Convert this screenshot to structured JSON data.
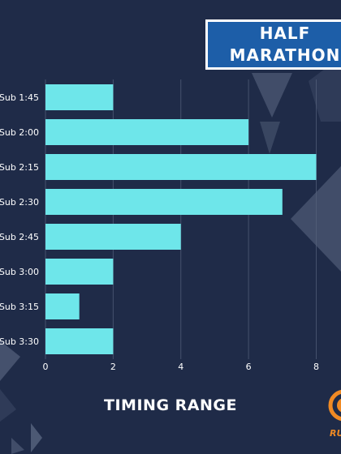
{
  "page": {
    "background": "#1f2b48",
    "accent": "#6ee6ea",
    "title_box_color": "#1d5ea8",
    "title_lines": [
      "HALF",
      "MARATHON"
    ],
    "brand_text": "RUN",
    "brand_logo_icon": "runner-logo-icon"
  },
  "chart_data": {
    "type": "bar",
    "orientation": "horizontal",
    "title": "HALF MARATHON",
    "xlabel": "TIMING RANGE",
    "ylabel": "",
    "categories": [
      "Sub 1:45",
      "Sub 2:00",
      "Sub 2:15",
      "Sub 2:30",
      "Sub 2:45",
      "Sub 3:00",
      "Sub 3:15",
      "Sub 3:30"
    ],
    "values": [
      2,
      6,
      8,
      7,
      4,
      2,
      1,
      2
    ],
    "xlim": [
      0,
      8.5
    ],
    "xticks": [
      0,
      2,
      4,
      6,
      8
    ],
    "grid": "vertical",
    "legend": "none",
    "bar_color": "#6ee6ea"
  }
}
